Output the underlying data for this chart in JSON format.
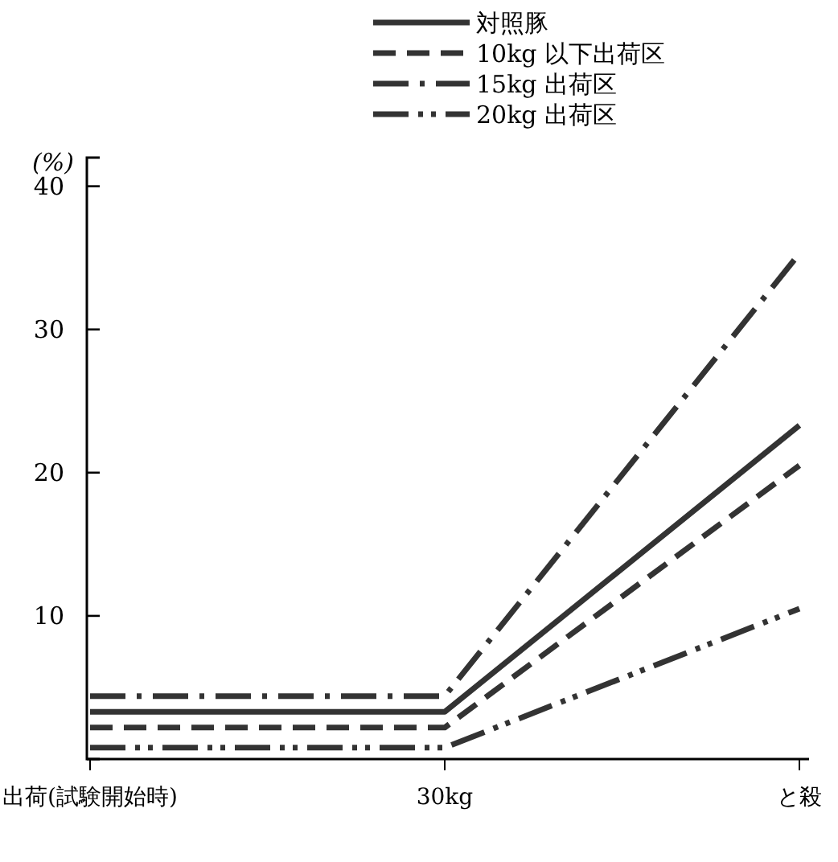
{
  "chart_data": {
    "type": "line",
    "ylabel": "(%)",
    "categories": [
      "出荷(試験開始時)",
      "30kg",
      "と殺"
    ],
    "series": [
      {
        "name": "対照豚",
        "color": "#333333",
        "line_style": "solid",
        "values": [
          3.3,
          3.3,
          23.3
        ]
      },
      {
        "name": "10kg 以下出荷区",
        "color": "#333333",
        "line_style": "dashed",
        "values": [
          2.2,
          2.2,
          20.5
        ]
      },
      {
        "name": "15kg 出荷区",
        "color": "#333333",
        "line_style": "dashdot",
        "values": [
          4.4,
          4.4,
          35.3
        ]
      },
      {
        "name": "20kg 出荷区",
        "color": "#333333",
        "line_style": "dashdotdot",
        "values": [
          0.8,
          0.8,
          10.5
        ]
      }
    ],
    "ylim": [
      0,
      42
    ],
    "yticks": [
      10,
      20,
      30,
      40
    ],
    "grid": false,
    "legend": "top right",
    "marker": "none"
  }
}
